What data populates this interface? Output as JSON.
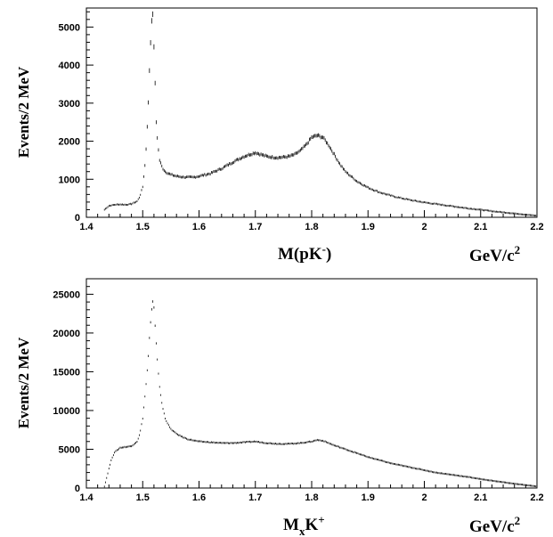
{
  "chart_data": [
    {
      "type": "line",
      "ylabel": "Events/2 MeV",
      "xlabel": "M(pK)",
      "xlabel_main": "M(pK",
      "xlabel_sup": "-",
      "xlabel_close": ")",
      "unit_base": "GeV/c",
      "unit_sup": "2",
      "xlim": [
        1.4,
        2.2
      ],
      "ylim": [
        0,
        5500
      ],
      "x_ticks": [
        1.4,
        1.5,
        1.6,
        1.7,
        1.8,
        1.9,
        2,
        2.1,
        2.2
      ],
      "y_ticks": [
        0,
        1000,
        2000,
        3000,
        4000,
        5000
      ],
      "x_tick_labels": [
        "1.4",
        "1.5",
        "1.6",
        "1.7",
        "1.8",
        "1.9",
        "2",
        "2.1",
        "2.2"
      ],
      "y_tick_labels": [
        "0",
        "1000",
        "2000",
        "3000",
        "4000",
        "5000"
      ],
      "series": [
        {
          "x": [
            1.432,
            1.44,
            1.45,
            1.46,
            1.47,
            1.48,
            1.49,
            1.495,
            1.5,
            1.505,
            1.51,
            1.513,
            1.516,
            1.518,
            1.52,
            1.522,
            1.524,
            1.527,
            1.53,
            1.535,
            1.54,
            1.55,
            1.56,
            1.57,
            1.58,
            1.59,
            1.6,
            1.62,
            1.64,
            1.66,
            1.68,
            1.69,
            1.7,
            1.71,
            1.72,
            1.73,
            1.74,
            1.75,
            1.76,
            1.77,
            1.78,
            1.79,
            1.8,
            1.81,
            1.82,
            1.83,
            1.84,
            1.85,
            1.86,
            1.88,
            1.9,
            1.92,
            1.94,
            1.96,
            1.98,
            2.0,
            2.02,
            2.04,
            2.06,
            2.08,
            2.1,
            2.12,
            2.14,
            2.16,
            2.18,
            2.2
          ],
          "y": [
            200,
            300,
            330,
            340,
            330,
            350,
            420,
            550,
            800,
            1500,
            3000,
            4300,
            5200,
            5300,
            4500,
            3500,
            2500,
            1900,
            1500,
            1300,
            1200,
            1120,
            1080,
            1060,
            1050,
            1050,
            1080,
            1150,
            1280,
            1450,
            1600,
            1650,
            1700,
            1650,
            1600,
            1580,
            1570,
            1580,
            1600,
            1650,
            1750,
            1900,
            2100,
            2150,
            2100,
            1900,
            1650,
            1400,
            1200,
            950,
            780,
            660,
            570,
            500,
            440,
            390,
            350,
            310,
            270,
            230,
            200,
            160,
            130,
            100,
            70,
            40
          ]
        }
      ]
    },
    {
      "type": "line",
      "ylabel": "Events/2 MeV",
      "xlabel": "MxK+",
      "xlabel_main": "M",
      "xlabel_sub": "x",
      "xlabel_k": "K",
      "xlabel_sup": "+",
      "unit_base": "GeV/c",
      "unit_sup": "2",
      "xlim": [
        1.4,
        2.2
      ],
      "ylim": [
        0,
        27000
      ],
      "x_ticks": [
        1.4,
        1.5,
        1.6,
        1.7,
        1.8,
        1.9,
        2,
        2.1,
        2.2
      ],
      "y_ticks": [
        0,
        5000,
        10000,
        15000,
        20000,
        25000
      ],
      "x_tick_labels": [
        "1.4",
        "1.5",
        "1.6",
        "1.7",
        "1.8",
        "1.9",
        "2",
        "2.1",
        "2.2"
      ],
      "y_tick_labels": [
        "0",
        "5000",
        "10000",
        "15000",
        "20000",
        "25000"
      ],
      "series": [
        {
          "x": [
            1.432,
            1.435,
            1.44,
            1.445,
            1.45,
            1.46,
            1.47,
            1.48,
            1.49,
            1.495,
            1.5,
            1.505,
            1.51,
            1.513,
            1.516,
            1.518,
            1.52,
            1.522,
            1.525,
            1.53,
            1.535,
            1.54,
            1.545,
            1.55,
            1.56,
            1.57,
            1.58,
            1.6,
            1.62,
            1.64,
            1.66,
            1.68,
            1.7,
            1.72,
            1.74,
            1.76,
            1.78,
            1.8,
            1.81,
            1.82,
            1.83,
            1.84,
            1.86,
            1.88,
            1.9,
            1.92,
            1.94,
            1.96,
            1.98,
            2.0,
            2.02,
            2.04,
            2.06,
            2.08,
            2.1,
            2.12,
            2.14,
            2.16,
            2.18,
            2.2
          ],
          "y": [
            200,
            1000,
            2500,
            3800,
            4600,
            5200,
            5300,
            5400,
            6000,
            7000,
            9000,
            12500,
            17000,
            20500,
            23000,
            24000,
            23200,
            21000,
            17500,
            13000,
            10500,
            9000,
            8200,
            7600,
            7000,
            6600,
            6300,
            6000,
            5900,
            5800,
            5800,
            5900,
            6000,
            5800,
            5700,
            5700,
            5800,
            6000,
            6200,
            6100,
            5800,
            5500,
            5000,
            4500,
            4000,
            3600,
            3200,
            2900,
            2600,
            2300,
            2000,
            1800,
            1600,
            1400,
            1150,
            950,
            750,
            550,
            380,
            200
          ]
        }
      ]
    }
  ]
}
